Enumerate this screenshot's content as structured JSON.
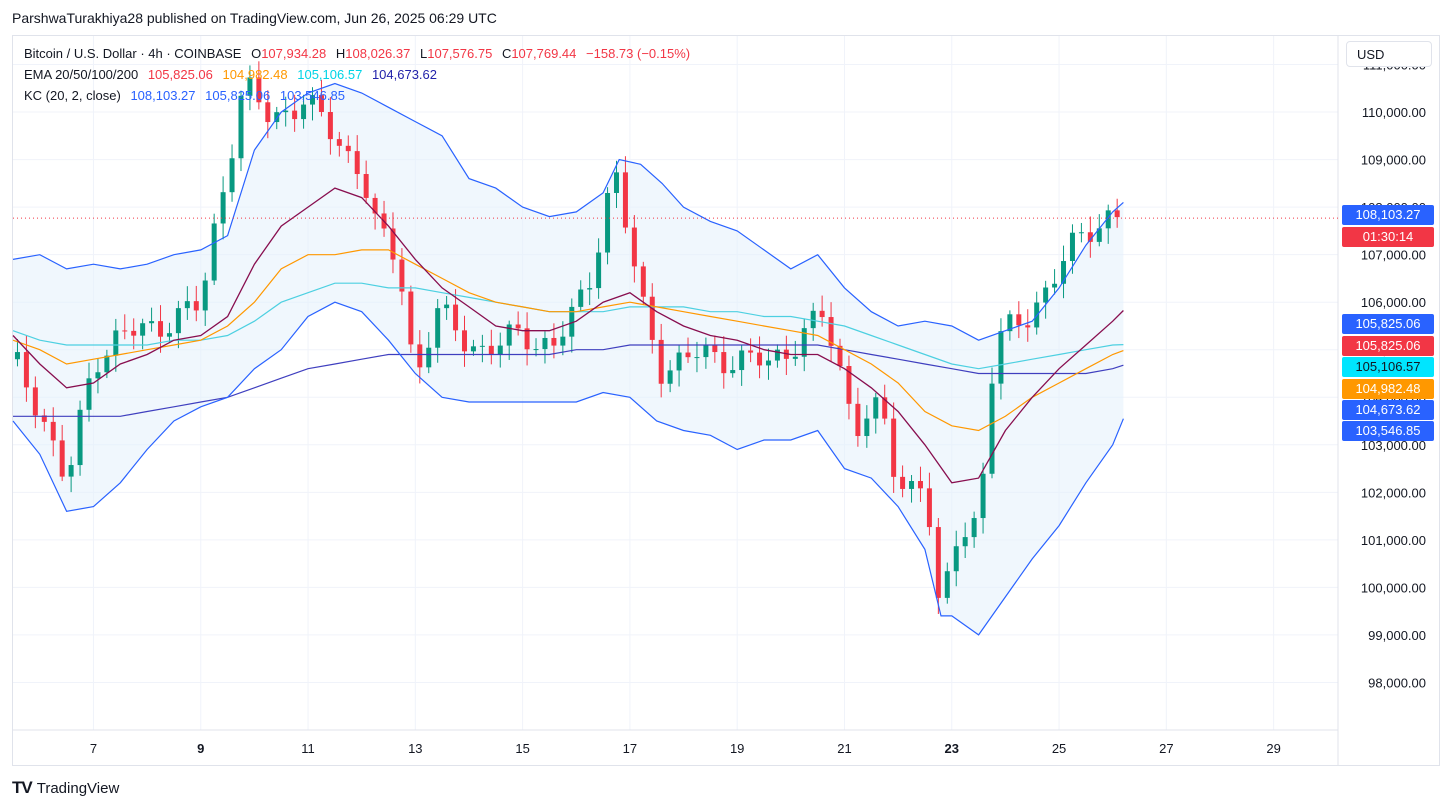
{
  "header": {
    "publisher": "ParshwaTurakhiya28 published on TradingView.com, Jun 26, 2025 06:29 UTC"
  },
  "legend": {
    "symbol": "Bitcoin / U.S. Dollar · 4h · COINBASE",
    "ohlc": {
      "o_label": "O",
      "o": "107,934.28",
      "h_label": "H",
      "h": "108,026.37",
      "l_label": "L",
      "l": "107,576.75",
      "c_label": "C",
      "c": "107,769.44",
      "change": "−158.73 (−0.15%)"
    },
    "ema_label": "EMA 20/50/100/200",
    "ema_values": [
      "105,825.06",
      "104,982.48",
      "105,106.57",
      "104,673.62"
    ],
    "kc_label": "KC (20, 2, close)",
    "kc_values": [
      "108,103.27",
      "105,825.06",
      "103,546.85"
    ]
  },
  "currency_button": "USD",
  "footer": {
    "logo": "TV",
    "brand": "TradingView"
  },
  "colors": {
    "up": "#089981",
    "down": "#f23645",
    "ema20": "#880e4f",
    "ema50": "#ff9800",
    "ema100": "#4dd0e1",
    "ema200": "#3f3fbf",
    "kc_band": "#2962ff",
    "kc_fill": "#e3f0fb"
  },
  "price_tags": [
    {
      "text": "108,103.27",
      "value": 108103.27,
      "color": "#2962ff"
    },
    {
      "text": "01:30:14",
      "value": 107769.44,
      "color": "#f23645"
    },
    {
      "text": "105,825.06",
      "value": 105825.06,
      "color": "#2962ff"
    },
    {
      "text": "105,825.06",
      "value": 105825.06,
      "color": "#f23645"
    },
    {
      "text": "105,106.57",
      "value": 105106.57,
      "color": "#00e5ff"
    },
    {
      "text": "104,982.48",
      "value": 104982.48,
      "color": "#ff9800"
    },
    {
      "text": "104,673.62",
      "value": 104673.62,
      "color": "#2962ff"
    },
    {
      "text": "103,546.85",
      "value": 103546.85,
      "color": "#2962ff"
    }
  ],
  "chart_data": {
    "type": "candlestick",
    "ylim": [
      97000,
      111600
    ],
    "y_ticks": [
      98000,
      99000,
      100000,
      101000,
      102000,
      103000,
      104000,
      105000,
      106000,
      107000,
      108000,
      109000,
      110000,
      111000
    ],
    "y_tick_labels": [
      "98,000.00",
      "99,000.00",
      "100,000.00",
      "101,000.00",
      "102,000.00",
      "103,000.00",
      "104,000.00",
      "105,000.00",
      "106,000.00",
      "107,000.00",
      "108,000.00",
      "109,000.00",
      "110,000.00",
      "111,000.00"
    ],
    "xlim": [
      5.5,
      30.2
    ],
    "x_ticks": [
      7,
      9,
      11,
      13,
      15,
      17,
      19,
      21,
      23,
      25,
      27,
      29
    ],
    "x_tick_labels": [
      "7",
      "9",
      "11",
      "13",
      "15",
      "17",
      "19",
      "21",
      "23",
      "25",
      "27",
      "29"
    ],
    "x_tick_bold": [
      false,
      true,
      false,
      false,
      false,
      false,
      false,
      false,
      true,
      false,
      false,
      false
    ],
    "last_price": 107769.44,
    "price_points": [
      [
        5.5,
        104800
      ],
      [
        6.0,
        103800
      ],
      [
        6.5,
        102100
      ],
      [
        7.0,
        104800
      ],
      [
        7.5,
        105300
      ],
      [
        8.0,
        105400
      ],
      [
        8.5,
        105700
      ],
      [
        9.0,
        105900
      ],
      [
        9.3,
        107800
      ],
      [
        9.8,
        110600
      ],
      [
        10.3,
        109800
      ],
      [
        10.9,
        110300
      ],
      [
        11.6,
        109300
      ],
      [
        12.0,
        108800
      ],
      [
        12.3,
        107400
      ],
      [
        12.7,
        106800
      ],
      [
        13.0,
        104400
      ],
      [
        13.4,
        105800
      ],
      [
        13.8,
        105300
      ],
      [
        14.3,
        105000
      ],
      [
        15.0,
        105300
      ],
      [
        15.6,
        105100
      ],
      [
        16.2,
        106200
      ],
      [
        16.7,
        108900
      ],
      [
        17.2,
        106000
      ],
      [
        17.6,
        104600
      ],
      [
        18.3,
        104900
      ],
      [
        19.0,
        104800
      ],
      [
        19.6,
        104700
      ],
      [
        20.2,
        105300
      ],
      [
        20.6,
        105700
      ],
      [
        21.2,
        103500
      ],
      [
        21.7,
        103700
      ],
      [
        22.0,
        102000
      ],
      [
        22.5,
        102400
      ],
      [
        22.8,
        98900
      ],
      [
        23.0,
        100900
      ],
      [
        23.5,
        101500
      ],
      [
        23.8,
        105100
      ],
      [
        24.4,
        105700
      ],
      [
        25.0,
        106700
      ],
      [
        25.5,
        107500
      ],
      [
        26.0,
        107900
      ],
      [
        26.2,
        107770
      ]
    ],
    "kc_upper": [
      [
        5.5,
        106900
      ],
      [
        6.0,
        107000
      ],
      [
        6.5,
        106700
      ],
      [
        7.0,
        106800
      ],
      [
        7.5,
        106700
      ],
      [
        8.0,
        106800
      ],
      [
        8.5,
        107000
      ],
      [
        9.0,
        107100
      ],
      [
        9.5,
        107400
      ],
      [
        10.0,
        109200
      ],
      [
        10.5,
        110000
      ],
      [
        11.0,
        110400
      ],
      [
        11.5,
        110600
      ],
      [
        12.0,
        110400
      ],
      [
        12.5,
        110100
      ],
      [
        13.0,
        109800
      ],
      [
        13.5,
        109500
      ],
      [
        14.0,
        108600
      ],
      [
        14.5,
        108400
      ],
      [
        15.0,
        108000
      ],
      [
        15.5,
        107800
      ],
      [
        16.0,
        107900
      ],
      [
        16.5,
        108300
      ],
      [
        16.8,
        109000
      ],
      [
        17.2,
        108900
      ],
      [
        17.6,
        108500
      ],
      [
        18.0,
        108000
      ],
      [
        18.5,
        107700
      ],
      [
        19.0,
        107500
      ],
      [
        19.5,
        107100
      ],
      [
        20.0,
        106700
      ],
      [
        20.5,
        107000
      ],
      [
        21.0,
        106300
      ],
      [
        21.5,
        105800
      ],
      [
        22.0,
        105500
      ],
      [
        22.5,
        105600
      ],
      [
        23.0,
        105500
      ],
      [
        23.5,
        105200
      ],
      [
        24.0,
        105400
      ],
      [
        24.5,
        105600
      ],
      [
        25.0,
        106300
      ],
      [
        25.5,
        107200
      ],
      [
        26.0,
        107900
      ],
      [
        26.2,
        108100
      ]
    ],
    "kc_lower": [
      [
        5.5,
        103500
      ],
      [
        6.0,
        102800
      ],
      [
        6.5,
        101600
      ],
      [
        7.0,
        101700
      ],
      [
        7.5,
        102200
      ],
      [
        8.0,
        102900
      ],
      [
        8.5,
        103500
      ],
      [
        9.0,
        103800
      ],
      [
        9.5,
        104000
      ],
      [
        10.0,
        104600
      ],
      [
        10.5,
        105000
      ],
      [
        11.0,
        105700
      ],
      [
        11.5,
        106000
      ],
      [
        12.0,
        105800
      ],
      [
        12.5,
        105200
      ],
      [
        13.0,
        104500
      ],
      [
        13.5,
        104000
      ],
      [
        14.0,
        103900
      ],
      [
        14.5,
        103900
      ],
      [
        15.0,
        103900
      ],
      [
        15.5,
        103900
      ],
      [
        16.0,
        103900
      ],
      [
        16.5,
        104100
      ],
      [
        17.0,
        104000
      ],
      [
        17.5,
        103500
      ],
      [
        18.0,
        103300
      ],
      [
        18.5,
        103200
      ],
      [
        19.0,
        102900
      ],
      [
        19.5,
        103100
      ],
      [
        20.0,
        103100
      ],
      [
        20.5,
        103300
      ],
      [
        21.0,
        102500
      ],
      [
        21.5,
        102300
      ],
      [
        22.0,
        101700
      ],
      [
        22.5,
        100800
      ],
      [
        22.8,
        99400
      ],
      [
        23.0,
        99400
      ],
      [
        23.5,
        99000
      ],
      [
        24.0,
        99800
      ],
      [
        24.5,
        100600
      ],
      [
        25.0,
        101300
      ],
      [
        25.5,
        102200
      ],
      [
        26.0,
        103000
      ],
      [
        26.2,
        103550
      ]
    ],
    "ema20": [
      [
        5.5,
        105300
      ],
      [
        6.0,
        104700
      ],
      [
        6.5,
        104200
      ],
      [
        7.0,
        104300
      ],
      [
        7.5,
        104700
      ],
      [
        8.0,
        104900
      ],
      [
        8.5,
        105200
      ],
      [
        9.0,
        105300
      ],
      [
        9.5,
        105700
      ],
      [
        10.0,
        106800
      ],
      [
        10.5,
        107600
      ],
      [
        11.0,
        108000
      ],
      [
        11.5,
        108400
      ],
      [
        12.0,
        108200
      ],
      [
        12.5,
        107600
      ],
      [
        13.0,
        106900
      ],
      [
        13.5,
        106300
      ],
      [
        14.0,
        105900
      ],
      [
        14.5,
        105500
      ],
      [
        15.0,
        105400
      ],
      [
        15.5,
        105400
      ],
      [
        16.0,
        105600
      ],
      [
        16.5,
        106000
      ],
      [
        17.0,
        106200
      ],
      [
        17.5,
        105800
      ],
      [
        18.0,
        105500
      ],
      [
        18.5,
        105300
      ],
      [
        19.0,
        105200
      ],
      [
        19.5,
        105000
      ],
      [
        20.0,
        104900
      ],
      [
        20.5,
        104900
      ],
      [
        21.0,
        104600
      ],
      [
        21.5,
        104200
      ],
      [
        22.0,
        103700
      ],
      [
        22.5,
        103000
      ],
      [
        23.0,
        102200
      ],
      [
        23.5,
        102300
      ],
      [
        24.0,
        103300
      ],
      [
        24.5,
        104000
      ],
      [
        25.0,
        104600
      ],
      [
        25.5,
        105100
      ],
      [
        26.0,
        105600
      ],
      [
        26.2,
        105825
      ]
    ],
    "ema50": [
      [
        5.5,
        105200
      ],
      [
        6.0,
        105000
      ],
      [
        6.5,
        104700
      ],
      [
        7.0,
        104800
      ],
      [
        7.5,
        104900
      ],
      [
        8.0,
        105000
      ],
      [
        8.5,
        105100
      ],
      [
        9.0,
        105200
      ],
      [
        9.5,
        105500
      ],
      [
        10.0,
        106000
      ],
      [
        10.5,
        106700
      ],
      [
        11.0,
        107000
      ],
      [
        11.5,
        107000
      ],
      [
        12.0,
        107100
      ],
      [
        12.5,
        107100
      ],
      [
        13.0,
        106800
      ],
      [
        13.5,
        106500
      ],
      [
        14.0,
        106200
      ],
      [
        14.5,
        106000
      ],
      [
        15.0,
        105900
      ],
      [
        15.5,
        105800
      ],
      [
        16.0,
        105800
      ],
      [
        16.5,
        105900
      ],
      [
        17.0,
        106000
      ],
      [
        17.5,
        105900
      ],
      [
        18.0,
        105800
      ],
      [
        18.5,
        105700
      ],
      [
        19.0,
        105600
      ],
      [
        19.5,
        105500
      ],
      [
        20.0,
        105400
      ],
      [
        20.5,
        105300
      ],
      [
        21.0,
        105000
      ],
      [
        21.5,
        104700
      ],
      [
        22.0,
        104300
      ],
      [
        22.5,
        103700
      ],
      [
        23.0,
        103400
      ],
      [
        23.5,
        103300
      ],
      [
        24.0,
        103600
      ],
      [
        24.5,
        104000
      ],
      [
        25.0,
        104300
      ],
      [
        25.5,
        104600
      ],
      [
        26.0,
        104900
      ],
      [
        26.2,
        104982
      ]
    ],
    "ema100": [
      [
        5.5,
        105400
      ],
      [
        6.0,
        105200
      ],
      [
        6.5,
        105100
      ],
      [
        7.0,
        105100
      ],
      [
        7.5,
        105100
      ],
      [
        8.0,
        105100
      ],
      [
        8.5,
        105200
      ],
      [
        9.0,
        105200
      ],
      [
        9.5,
        105300
      ],
      [
        10.0,
        105600
      ],
      [
        10.5,
        106000
      ],
      [
        11.0,
        106200
      ],
      [
        11.5,
        106400
      ],
      [
        12.0,
        106400
      ],
      [
        12.5,
        106300
      ],
      [
        13.0,
        106300
      ],
      [
        13.5,
        106200
      ],
      [
        14.0,
        106100
      ],
      [
        14.5,
        106000
      ],
      [
        15.0,
        105900
      ],
      [
        15.5,
        105800
      ],
      [
        16.0,
        105800
      ],
      [
        16.5,
        105800
      ],
      [
        17.0,
        105900
      ],
      [
        17.5,
        105900
      ],
      [
        18.0,
        105900
      ],
      [
        18.5,
        105800
      ],
      [
        19.0,
        105800
      ],
      [
        19.5,
        105700
      ],
      [
        20.0,
        105700
      ],
      [
        20.5,
        105600
      ],
      [
        21.0,
        105500
      ],
      [
        21.5,
        105300
      ],
      [
        22.0,
        105100
      ],
      [
        22.5,
        104900
      ],
      [
        23.0,
        104700
      ],
      [
        23.5,
        104600
      ],
      [
        24.0,
        104700
      ],
      [
        24.5,
        104800
      ],
      [
        25.0,
        104900
      ],
      [
        25.5,
        105000
      ],
      [
        26.0,
        105100
      ],
      [
        26.2,
        105107
      ]
    ],
    "ema200": [
      [
        5.5,
        103600
      ],
      [
        6.0,
        103600
      ],
      [
        6.5,
        103600
      ],
      [
        7.0,
        103600
      ],
      [
        7.5,
        103600
      ],
      [
        8.0,
        103700
      ],
      [
        8.5,
        103800
      ],
      [
        9.0,
        103900
      ],
      [
        9.5,
        104000
      ],
      [
        10.0,
        104200
      ],
      [
        10.5,
        104400
      ],
      [
        11.0,
        104600
      ],
      [
        11.5,
        104700
      ],
      [
        12.0,
        104800
      ],
      [
        12.5,
        104900
      ],
      [
        13.0,
        104900
      ],
      [
        13.5,
        104900
      ],
      [
        14.0,
        104900
      ],
      [
        14.5,
        104900
      ],
      [
        15.0,
        104900
      ],
      [
        15.5,
        104900
      ],
      [
        16.0,
        105000
      ],
      [
        16.5,
        105000
      ],
      [
        17.0,
        105100
      ],
      [
        17.5,
        105100
      ],
      [
        18.0,
        105100
      ],
      [
        18.5,
        105100
      ],
      [
        19.0,
        105100
      ],
      [
        19.5,
        105100
      ],
      [
        20.0,
        105100
      ],
      [
        20.5,
        105100
      ],
      [
        21.0,
        105000
      ],
      [
        21.5,
        104900
      ],
      [
        22.0,
        104800
      ],
      [
        22.5,
        104700
      ],
      [
        23.0,
        104600
      ],
      [
        23.5,
        104500
      ],
      [
        24.0,
        104500
      ],
      [
        24.5,
        104500
      ],
      [
        25.0,
        104500
      ],
      [
        25.5,
        104500
      ],
      [
        26.0,
        104600
      ],
      [
        26.2,
        104674
      ]
    ]
  }
}
